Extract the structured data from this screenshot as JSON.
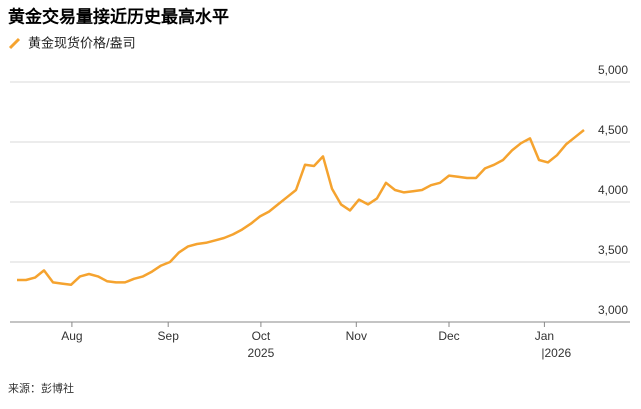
{
  "chart_data": {
    "type": "line",
    "title": "黄金交易量接近历史最高水平",
    "source": "来源：彭博社",
    "series": [
      {
        "name": "黄金现货价格/盎司",
        "color": "#f5a32f",
        "values": [
          3350,
          3350,
          3370,
          3430,
          3330,
          3320,
          3310,
          3380,
          3400,
          3380,
          3340,
          3330,
          3330,
          3360,
          3380,
          3420,
          3470,
          3500,
          3580,
          3630,
          3650,
          3660,
          3680,
          3700,
          3730,
          3770,
          3820,
          3880,
          3920,
          3980,
          4040,
          4100,
          4310,
          4300,
          4380,
          4110,
          3980,
          3930,
          4020,
          3980,
          4030,
          4160,
          4100,
          4080,
          4090,
          4100,
          4140,
          4160,
          4220,
          4210,
          4200,
          4200,
          4280,
          4310,
          4350,
          4430,
          4490,
          4530,
          4350,
          4330,
          4390,
          4480,
          4540,
          4600
        ]
      }
    ],
    "ylim": [
      2900,
      5050
    ],
    "yticks": [
      {
        "value": 3000,
        "label": "3,000"
      },
      {
        "value": 3500,
        "label": "3,500"
      },
      {
        "value": 4000,
        "label": "4,000"
      },
      {
        "value": 4500,
        "label": "4,500"
      },
      {
        "value": 5000,
        "label": "5,000"
      }
    ],
    "xlim": [
      0,
      63
    ],
    "xticks": [
      {
        "value": 6.1,
        "label": "Aug"
      },
      {
        "value": 16.8,
        "label": "Sep"
      },
      {
        "value": 27.1,
        "label": "Oct"
      },
      {
        "value": 37.7,
        "label": "Nov"
      },
      {
        "value": 48.0,
        "label": "Dec"
      },
      {
        "value": 58.6,
        "label": "Jan"
      }
    ],
    "year_labels": [
      {
        "value": 27.1,
        "label": "2025"
      },
      {
        "value": 58.6,
        "label": "|2026"
      }
    ],
    "grid": true
  }
}
